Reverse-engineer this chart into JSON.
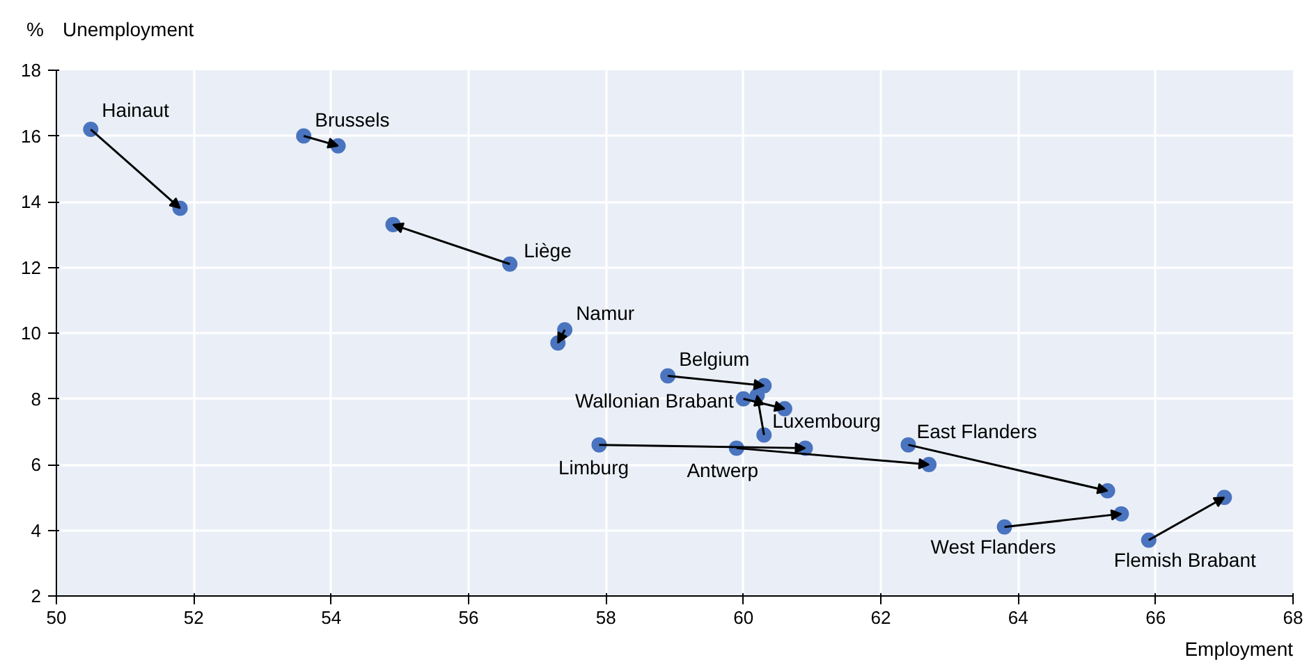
{
  "chart_data": {
    "type": "scatter",
    "xlabel": "Employment",
    "ylabel": "Unemployment",
    "annotations": [
      "%"
    ],
    "xlim": [
      50,
      68
    ],
    "xticks": [
      50,
      52,
      54,
      56,
      58,
      60,
      62,
      64,
      66,
      68
    ],
    "ylim": [
      2,
      18
    ],
    "yticks": [
      2,
      4,
      6,
      8,
      10,
      12,
      14,
      16,
      18
    ],
    "grid": true,
    "marker": "circle",
    "line_style": "solid",
    "series": [
      {
        "name": "Hainaut",
        "color": "#4a74bf",
        "x": [
          50.5,
          51.8
        ],
        "values": [
          16.2,
          13.8
        ]
      },
      {
        "name": "Brussels",
        "color": "#4a74bf",
        "x": [
          53.6,
          54.1
        ],
        "values": [
          16.0,
          15.7
        ]
      },
      {
        "name": "Liège",
        "color": "#4a74bf",
        "x": [
          56.6,
          54.9
        ],
        "values": [
          12.1,
          13.3
        ]
      },
      {
        "name": "Namur",
        "color": "#4a74bf",
        "x": [
          57.4,
          57.3
        ],
        "values": [
          10.1,
          9.7
        ]
      },
      {
        "name": "Belgium",
        "color": "#4a74bf",
        "x": [
          58.9,
          60.3
        ],
        "values": [
          8.7,
          8.4
        ]
      },
      {
        "name": "Wallonian Brabant",
        "color": "#4a74bf",
        "x": [
          60.0,
          60.6
        ],
        "values": [
          8.0,
          7.7
        ]
      },
      {
        "name": "Luxembourg",
        "color": "#4a74bf",
        "x": [
          60.3,
          60.2
        ],
        "values": [
          6.9,
          8.1
        ]
      },
      {
        "name": "Limburg",
        "color": "#4a74bf",
        "x": [
          57.9,
          60.9
        ],
        "values": [
          6.6,
          6.5
        ]
      },
      {
        "name": "Antwerp",
        "color": "#4a74bf",
        "x": [
          59.9,
          62.7
        ],
        "values": [
          6.5,
          6.0
        ]
      },
      {
        "name": "East Flanders",
        "color": "#4a74bf",
        "x": [
          62.4,
          65.3
        ],
        "values": [
          6.6,
          5.2
        ]
      },
      {
        "name": "West Flanders",
        "color": "#4a74bf",
        "x": [
          63.8,
          65.5
        ],
        "values": [
          4.1,
          4.5
        ]
      },
      {
        "name": "Flemish Brabant",
        "color": "#4a74bf",
        "x": [
          65.9,
          67.0
        ],
        "values": [
          3.7,
          5.0
        ]
      }
    ]
  }
}
